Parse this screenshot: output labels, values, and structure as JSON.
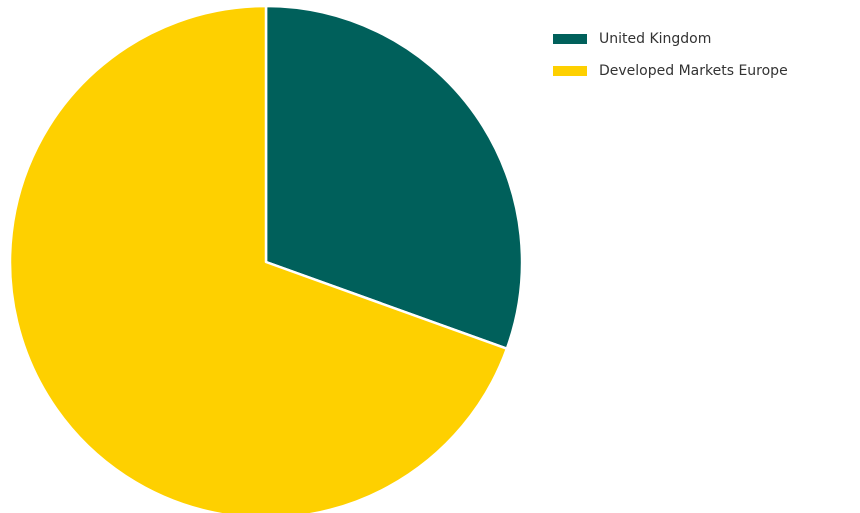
{
  "chart_data": {
    "type": "pie",
    "title": "",
    "slices": [
      {
        "label": "United Kingdom",
        "value": 30.5,
        "color": "#00605b"
      },
      {
        "label": "Developed Markets Europe",
        "value": 69.5,
        "color": "#fed000"
      }
    ],
    "legend_position": "top-right",
    "start_angle": "12 o'clock",
    "direction": "clockwise"
  }
}
